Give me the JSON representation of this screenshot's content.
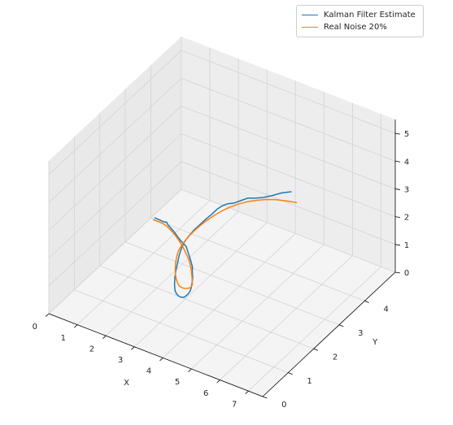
{
  "chart_data": {
    "type": "line",
    "projection": "3d",
    "title": "",
    "xlabel": "X",
    "ylabel": "Y",
    "zlabel": "",
    "xlim": [
      0,
      7
    ],
    "ylim": [
      0,
      5
    ],
    "zlim": [
      0,
      5.5
    ],
    "xticks": [
      "0",
      "1",
      "2",
      "3",
      "4",
      "5",
      "6",
      "7"
    ],
    "yticks": [
      "0",
      "1",
      "2",
      "3",
      "4"
    ],
    "zticks": [
      "0",
      "1",
      "2",
      "3",
      "4",
      "5"
    ],
    "grid": true,
    "legend": "top-right",
    "series": [
      {
        "name": "Kalman Filter Estimate",
        "color": "#1f77b4",
        "points": [
          [
            0.5,
            3.6,
            0.55
          ],
          [
            0.75,
            3.55,
            0.6
          ],
          [
            0.9,
            3.5,
            0.65
          ],
          [
            1.0,
            3.5,
            0.68
          ],
          [
            1.1,
            3.45,
            0.66
          ],
          [
            1.25,
            3.4,
            0.64
          ],
          [
            1.4,
            3.35,
            0.62
          ],
          [
            1.5,
            3.3,
            0.63
          ],
          [
            1.65,
            3.25,
            0.58
          ],
          [
            1.8,
            3.2,
            0.55
          ],
          [
            1.9,
            3.18,
            0.52
          ],
          [
            2.0,
            3.15,
            0.5
          ],
          [
            2.15,
            3.05,
            0.46
          ],
          [
            2.3,
            2.95,
            0.42
          ],
          [
            2.45,
            2.85,
            0.36
          ],
          [
            2.55,
            2.78,
            0.3
          ],
          [
            2.6,
            2.72,
            0.22
          ],
          [
            2.68,
            2.65,
            0.1
          ],
          [
            2.75,
            2.55,
            0.05
          ],
          [
            2.85,
            2.4,
            0.02
          ],
          [
            2.95,
            2.25,
            0.06
          ],
          [
            3.05,
            2.05,
            0.15
          ],
          [
            3.15,
            1.8,
            0.3
          ],
          [
            3.25,
            1.55,
            0.55
          ],
          [
            3.35,
            1.35,
            0.8
          ],
          [
            3.45,
            1.15,
            1.1
          ],
          [
            3.55,
            0.98,
            1.4
          ],
          [
            3.65,
            0.85,
            1.75
          ],
          [
            3.75,
            0.75,
            2.15
          ],
          [
            3.85,
            0.68,
            2.5
          ],
          [
            3.95,
            0.63,
            2.85
          ],
          [
            4.05,
            0.58,
            3.2
          ],
          [
            4.15,
            0.55,
            3.5
          ],
          [
            4.25,
            0.55,
            3.78
          ],
          [
            4.4,
            0.56,
            4.05
          ],
          [
            4.55,
            0.6,
            4.3
          ],
          [
            4.7,
            0.65,
            4.5
          ],
          [
            4.85,
            0.72,
            4.7
          ],
          [
            5.0,
            0.82,
            4.88
          ],
          [
            5.1,
            0.9,
            5.02
          ],
          [
            5.2,
            1.0,
            5.1
          ],
          [
            5.3,
            1.1,
            5.12
          ],
          [
            5.4,
            1.22,
            5.08
          ],
          [
            5.55,
            1.4,
            5.1
          ],
          [
            5.65,
            1.5,
            5.12
          ],
          [
            5.75,
            1.62,
            5.05
          ],
          [
            5.9,
            1.8,
            4.98
          ],
          [
            6.05,
            2.0,
            4.94
          ],
          [
            6.2,
            2.2,
            4.92
          ],
          [
            6.35,
            2.4,
            4.85
          ]
        ]
      },
      {
        "name": "Real Noise 20%",
        "color": "#ff7f0e",
        "points": [
          [
            0.5,
            3.55,
            0.52
          ],
          [
            0.7,
            3.52,
            0.56
          ],
          [
            0.9,
            3.48,
            0.6
          ],
          [
            1.1,
            3.42,
            0.62
          ],
          [
            1.3,
            3.35,
            0.62
          ],
          [
            1.5,
            3.28,
            0.6
          ],
          [
            1.7,
            3.2,
            0.56
          ],
          [
            1.9,
            3.12,
            0.5
          ],
          [
            2.1,
            3.02,
            0.43
          ],
          [
            2.3,
            2.92,
            0.35
          ],
          [
            2.5,
            2.78,
            0.25
          ],
          [
            2.65,
            2.65,
            0.12
          ],
          [
            2.75,
            2.55,
            0.05
          ],
          [
            2.8,
            2.5,
            0.0
          ],
          [
            2.9,
            2.3,
            0.1
          ],
          [
            3.0,
            2.1,
            0.3
          ],
          [
            3.1,
            1.85,
            0.55
          ],
          [
            3.2,
            1.62,
            0.82
          ],
          [
            3.3,
            1.42,
            1.1
          ],
          [
            3.4,
            1.24,
            1.4
          ],
          [
            3.5,
            1.08,
            1.72
          ],
          [
            3.6,
            0.94,
            2.05
          ],
          [
            3.7,
            0.82,
            2.38
          ],
          [
            3.8,
            0.72,
            2.7
          ],
          [
            3.9,
            0.65,
            3.02
          ],
          [
            4.0,
            0.6,
            3.32
          ],
          [
            4.15,
            0.56,
            3.62
          ],
          [
            4.3,
            0.55,
            3.88
          ],
          [
            4.45,
            0.57,
            4.12
          ],
          [
            4.6,
            0.61,
            4.33
          ],
          [
            4.75,
            0.67,
            4.52
          ],
          [
            4.9,
            0.75,
            4.68
          ],
          [
            5.05,
            0.85,
            4.82
          ],
          [
            5.2,
            0.98,
            4.93
          ],
          [
            5.35,
            1.12,
            5.0
          ],
          [
            5.5,
            1.28,
            5.03
          ],
          [
            5.65,
            1.46,
            5.02
          ],
          [
            5.8,
            1.66,
            4.96
          ],
          [
            5.95,
            1.88,
            4.86
          ],
          [
            6.1,
            2.1,
            4.72
          ],
          [
            6.25,
            2.32,
            4.55
          ],
          [
            6.4,
            2.55,
            4.35
          ]
        ]
      }
    ]
  }
}
